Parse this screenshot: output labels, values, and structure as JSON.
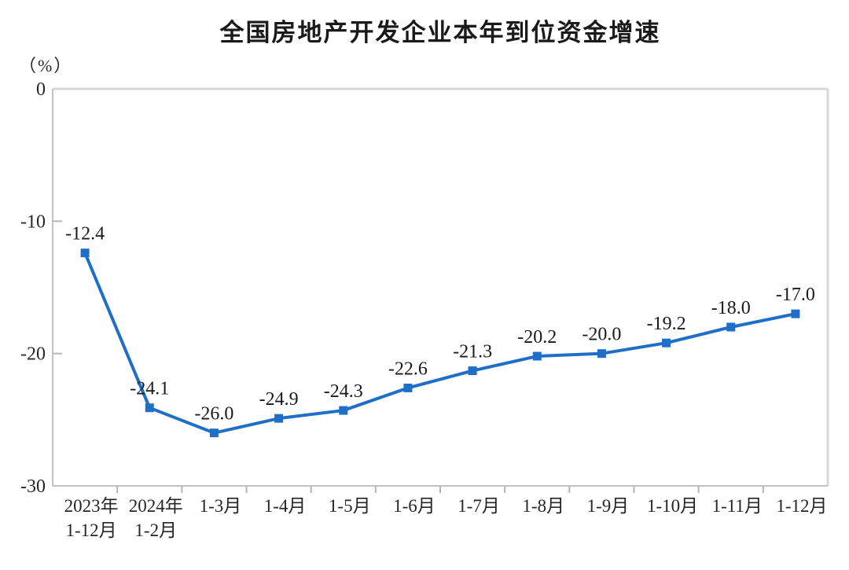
{
  "chart_data": {
    "type": "line",
    "title": "全国房地产开发企业本年到位资金增速",
    "unit_label": "（%）",
    "categories": [
      [
        "2023年",
        "1-12月"
      ],
      [
        "2024年",
        "1-2月"
      ],
      [
        "1-3月"
      ],
      [
        "1-4月"
      ],
      [
        "1-5月"
      ],
      [
        "1-6月"
      ],
      [
        "1-7月"
      ],
      [
        "1-8月"
      ],
      [
        "1-9月"
      ],
      [
        "1-10月"
      ],
      [
        "1-11月"
      ],
      [
        "1-12月"
      ]
    ],
    "series": [
      {
        "name": "本年到位资金增速",
        "values": [
          -12.4,
          -24.1,
          -26.0,
          -24.9,
          -24.3,
          -22.6,
          -21.3,
          -20.2,
          -20.0,
          -19.2,
          -18.0,
          -17.0
        ],
        "data_labels": [
          "-12.4",
          "-24.1",
          "-26.0",
          "-24.9",
          "-24.3",
          "-22.6",
          "-21.3",
          "-20.2",
          "-20.0",
          "-19.2",
          "-18.0",
          "-17.0"
        ]
      }
    ],
    "ylim": [
      -30,
      0
    ],
    "yticks": [
      0,
      -10,
      -20,
      -30
    ],
    "ytick_labels": [
      "0",
      "-10",
      "-20",
      "-30"
    ],
    "grid": false,
    "legend": "none",
    "marker": "square",
    "colors": {
      "line": "#1f6ec8",
      "marker": "#1f6ec8",
      "title_text": "#1a1a1a",
      "axis_text": "#262626",
      "data_label_text": "#1a1a1a",
      "plot_border": "#d7d7d7",
      "axis_line": "#c2c2c2",
      "tick": "#b5b5b5",
      "background": "#ffffff"
    }
  }
}
